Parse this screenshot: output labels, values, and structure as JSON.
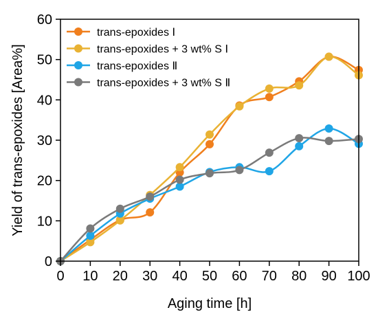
{
  "chart_data": {
    "type": "line",
    "xlabel": "Aging time [h]",
    "ylabel": "Yield of trans-epoxides [Area%]",
    "xlim": [
      0,
      100
    ],
    "ylim": [
      0,
      60
    ],
    "xticks": [
      0,
      10,
      20,
      30,
      40,
      50,
      60,
      70,
      80,
      90,
      100
    ],
    "yticks": [
      0,
      10,
      20,
      30,
      40,
      50,
      60
    ],
    "grid": false,
    "legend_position": "top-left",
    "x": [
      0,
      10,
      20,
      30,
      40,
      50,
      60,
      70,
      80,
      90,
      100
    ],
    "series": [
      {
        "name": "trans-epoxides Ⅰ",
        "color": "#F07F1D",
        "values": [
          0,
          5.3,
          10.2,
          12.1,
          22.0,
          29.0,
          38.6,
          40.7,
          44.6,
          50.7,
          47.4
        ]
      },
      {
        "name": "trans-epoxides + 3 wt% S Ⅰ",
        "color": "#E9B233",
        "values": [
          0,
          4.7,
          10.1,
          16.4,
          23.3,
          31.4,
          38.4,
          42.8,
          43.6,
          50.7,
          46.1
        ]
      },
      {
        "name": "trans-epoxides Ⅱ",
        "color": "#1FA5E6",
        "values": [
          0,
          6.3,
          11.8,
          15.5,
          18.5,
          22.1,
          23.3,
          22.3,
          28.5,
          32.9,
          29.1
        ]
      },
      {
        "name": "trans-epoxides + 3 wt% S Ⅱ",
        "color": "#7A7A7A",
        "values": [
          0,
          8.1,
          13.0,
          16.0,
          20.2,
          21.8,
          22.6,
          26.9,
          30.5,
          29.8,
          30.3
        ]
      }
    ]
  }
}
